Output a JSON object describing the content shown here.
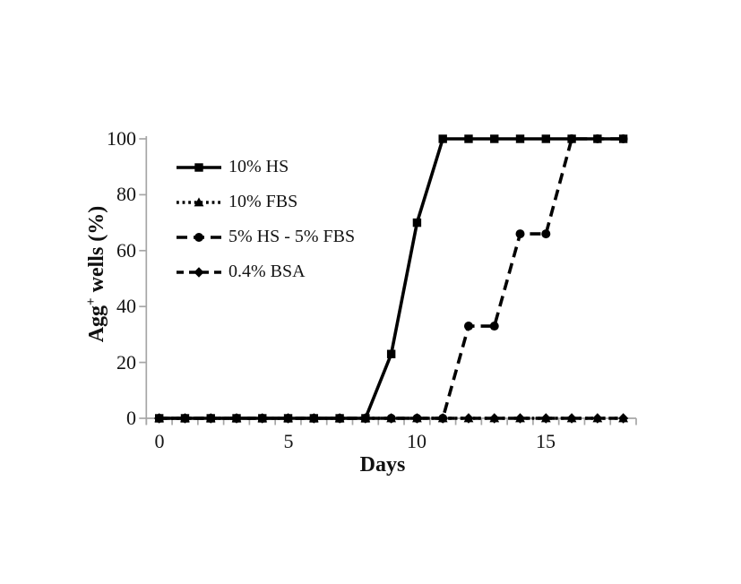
{
  "colors": {
    "series": "#000000",
    "axis": "#a6a6a6",
    "text": "#141414",
    "background": "#ffffff"
  },
  "axes": {
    "x_label": "Days",
    "y_label_base": "Agg",
    "y_label_sup": "+",
    "y_label_rest": " wells (%)",
    "y_tick_labels": [
      "100",
      "80",
      "60",
      "40",
      "20",
      "0"
    ],
    "x_tick_labels": [
      "0",
      "5",
      "10",
      "15"
    ]
  },
  "chart_data": {
    "type": "line",
    "title": "",
    "xlabel": "Days",
    "ylabel": "Agg+ wells (%)",
    "x": [
      0,
      1,
      2,
      3,
      4,
      5,
      6,
      7,
      8,
      9,
      10,
      11,
      12,
      13,
      14,
      15,
      16,
      17,
      18
    ],
    "xlim": [
      0,
      18
    ],
    "ylim": [
      0,
      100
    ],
    "grid": false,
    "legend_position": "upper-left-inside",
    "x_major_ticks": [
      0,
      5,
      10,
      15
    ],
    "y_major_ticks": [
      0,
      20,
      40,
      60,
      80,
      100
    ],
    "series": [
      {
        "name": "10% HS",
        "line": "solid",
        "marker": "square",
        "values": [
          0,
          0,
          0,
          0,
          0,
          0,
          0,
          0,
          0,
          23,
          70,
          100,
          100,
          100,
          100,
          100,
          100,
          100,
          100
        ]
      },
      {
        "name": "10% FBS",
        "line": "dotted",
        "marker": "triangle",
        "values": [
          0,
          0,
          0,
          0,
          0,
          0,
          0,
          0,
          0,
          0,
          0,
          0,
          0,
          0,
          0,
          0,
          0,
          0,
          0
        ]
      },
      {
        "name": "5% HS - 5% FBS",
        "line": "long-dash",
        "marker": "circle",
        "values": [
          0,
          0,
          0,
          0,
          0,
          0,
          0,
          0,
          0,
          0,
          0,
          0,
          33,
          33,
          66,
          66,
          100,
          100,
          100
        ]
      },
      {
        "name": "0.4% BSA",
        "line": "dash",
        "marker": "diamond",
        "values": [
          0,
          0,
          0,
          0,
          0,
          0,
          0,
          0,
          0,
          0,
          0,
          0,
          0,
          0,
          0,
          0,
          0,
          0,
          0
        ]
      }
    ]
  }
}
